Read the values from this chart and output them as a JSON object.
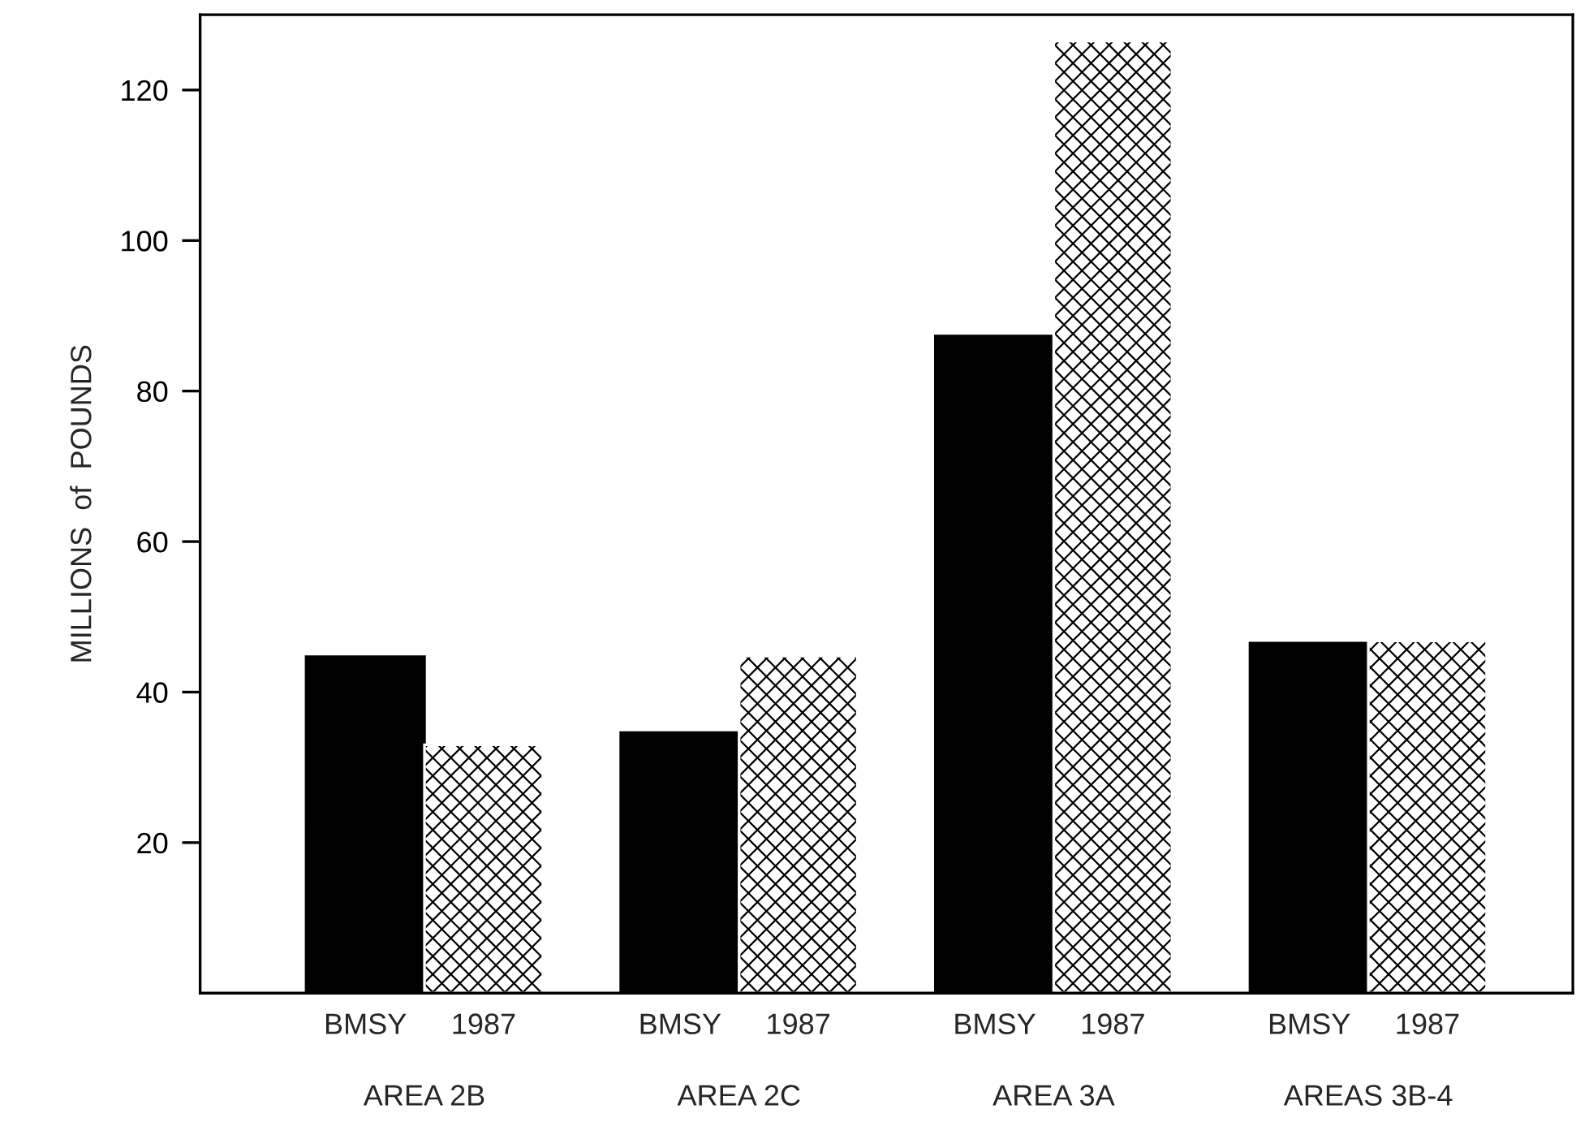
{
  "chart_data": {
    "type": "bar",
    "ylabel": "MILLIONS  of  POUNDS",
    "categories": [
      "AREA 2B",
      "AREA 2C",
      "AREA 3A",
      "AREAS 3B-4"
    ],
    "series": [
      {
        "name": "BMSY",
        "color": "#000000",
        "values": [
          44.7,
          34.6,
          87.3,
          46.5
        ]
      },
      {
        "name": "1987",
        "color": "#ffffff",
        "values": [
          33.0,
          44.8,
          126.5,
          46.8
        ]
      }
    ],
    "ylim": [
      0,
      130
    ],
    "yticks": [
      20,
      40,
      60,
      80,
      100,
      120
    ],
    "grid": false,
    "legend": false
  }
}
